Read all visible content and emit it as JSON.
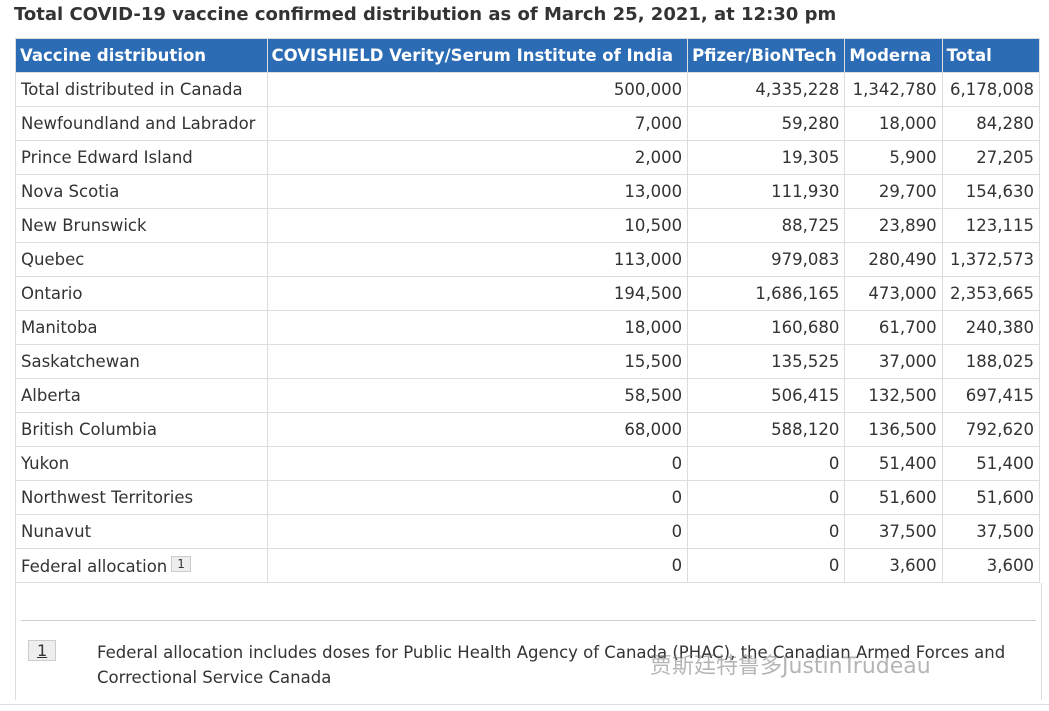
{
  "title": "Total COVID-19 vaccine confirmed distribution as of March 25, 2021, at 12:30 pm",
  "table": {
    "header": [
      "Vaccine distribution",
      "COVISHIELD Verity/Serum Institute of India",
      "Pfizer/BioNTech",
      "Moderna",
      "Total"
    ],
    "rows": [
      [
        "Total distributed in Canada",
        "500,000",
        "4,335,228",
        "1,342,780",
        "6,178,008"
      ],
      [
        "Newfoundland and Labrador",
        "7,000",
        "59,280",
        "18,000",
        "84,280"
      ],
      [
        "Prince Edward Island",
        "2,000",
        "19,305",
        "5,900",
        "27,205"
      ],
      [
        "Nova Scotia",
        "13,000",
        "111,930",
        "29,700",
        "154,630"
      ],
      [
        "New Brunswick",
        "10,500",
        "88,725",
        "23,890",
        "123,115"
      ],
      [
        "Quebec",
        "113,000",
        "979,083",
        "280,490",
        "1,372,573"
      ],
      [
        "Ontario",
        "194,500",
        "1,686,165",
        "473,000",
        "2,353,665"
      ],
      [
        "Manitoba",
        "18,000",
        "160,680",
        "61,700",
        "240,380"
      ],
      [
        "Saskatchewan",
        "15,500",
        "135,525",
        "37,000",
        "188,025"
      ],
      [
        "Alberta",
        "58,500",
        "506,415",
        "132,500",
        "697,415"
      ],
      [
        "British Columbia",
        "68,000",
        "588,120",
        "136,500",
        "792,620"
      ],
      [
        "Yukon",
        "0",
        "0",
        "51,400",
        "51,400"
      ],
      [
        "Northwest Territories",
        "0",
        "0",
        "51,600",
        "51,600"
      ],
      [
        "Nunavut",
        "0",
        "0",
        "37,500",
        "37,500"
      ],
      [
        "Federal allocation",
        "0",
        "0",
        "3,600",
        "3,600"
      ]
    ],
    "footnoted_row": 14
  },
  "footnote": {
    "marker": "1",
    "text": "Federal allocation includes doses for Public Health Agency of Canada (PHAC), the Canadian Armed Forces and Correctional Service Canada"
  },
  "watermark": "贾斯廷特鲁多JustinTrudeau"
}
